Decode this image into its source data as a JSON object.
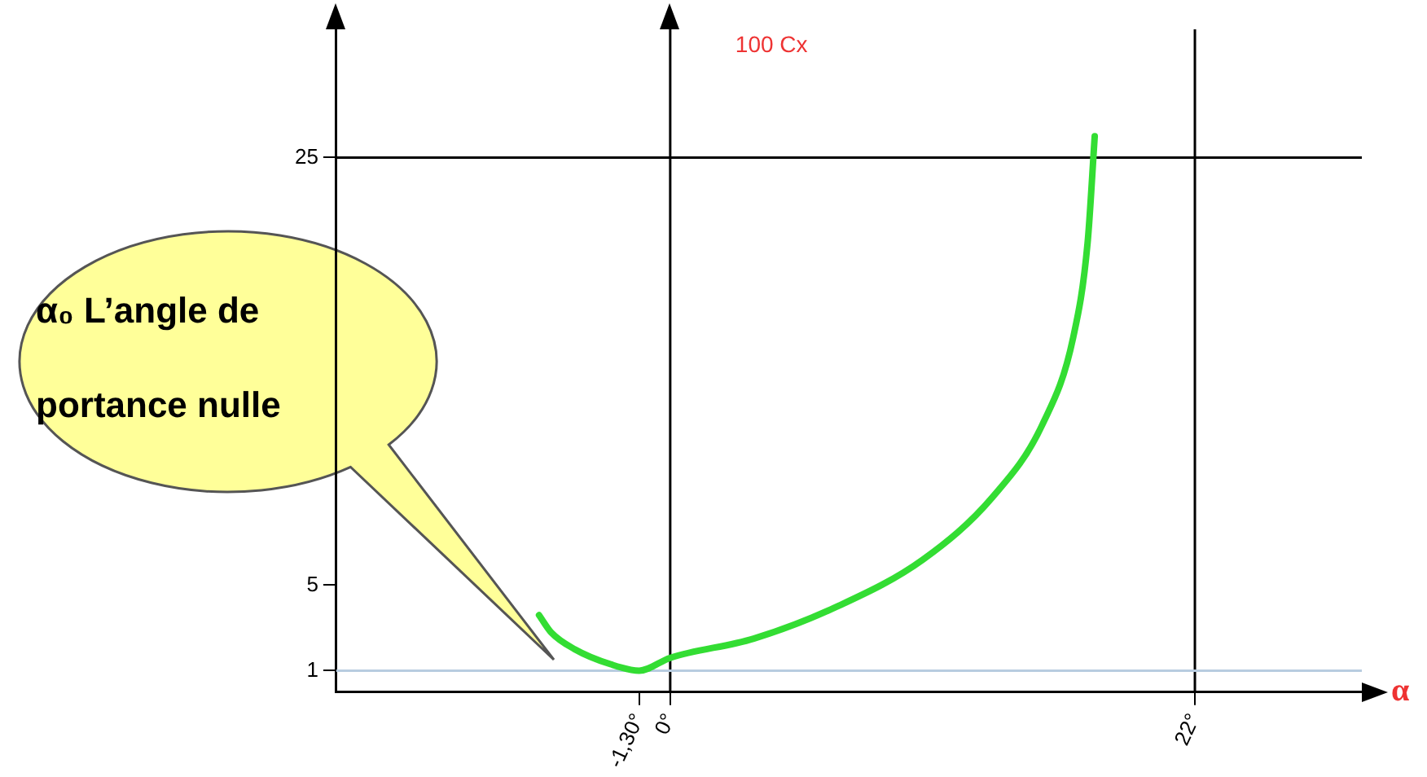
{
  "chart_data": {
    "type": "line",
    "xlabel": "α",
    "ylabel": "100 Cx",
    "series": [
      {
        "color": "#33dd33",
        "x": [
          -5.5,
          -5,
          -4,
          -2.5,
          -1.3,
          0,
          3.5,
          7,
          10.6,
          13.5,
          15.6,
          16.9,
          17.5,
          17.8
        ],
        "values": [
          3.6,
          2.8,
          2,
          1.3,
          1,
          1.6,
          2.5,
          4,
          6.2,
          9.1,
          12.5,
          16.6,
          21,
          26
        ]
      }
    ],
    "xlim": [
      -14,
      29
    ],
    "ylim": [
      0,
      31
    ],
    "xticks": [
      {
        "value": -1.3,
        "label": "-1,30°"
      },
      {
        "value": 0,
        "label": "0°"
      },
      {
        "value": 22,
        "label": "22°"
      }
    ],
    "yticks": [
      1,
      5,
      25
    ],
    "ref_lines": [
      {
        "axis": "y",
        "value": 25,
        "color": "#000000"
      },
      {
        "axis": "x",
        "value": 22,
        "color": "#000000"
      },
      {
        "axis": "x",
        "value": 0,
        "color": "#000000"
      },
      {
        "axis": "y",
        "value": 1,
        "color": "#b8cce0"
      }
    ],
    "annotations": [
      "α₀ L’angle de portance nulle"
    ],
    "grid": false,
    "legend": false,
    "marker": "none",
    "line_style": "solid"
  }
}
